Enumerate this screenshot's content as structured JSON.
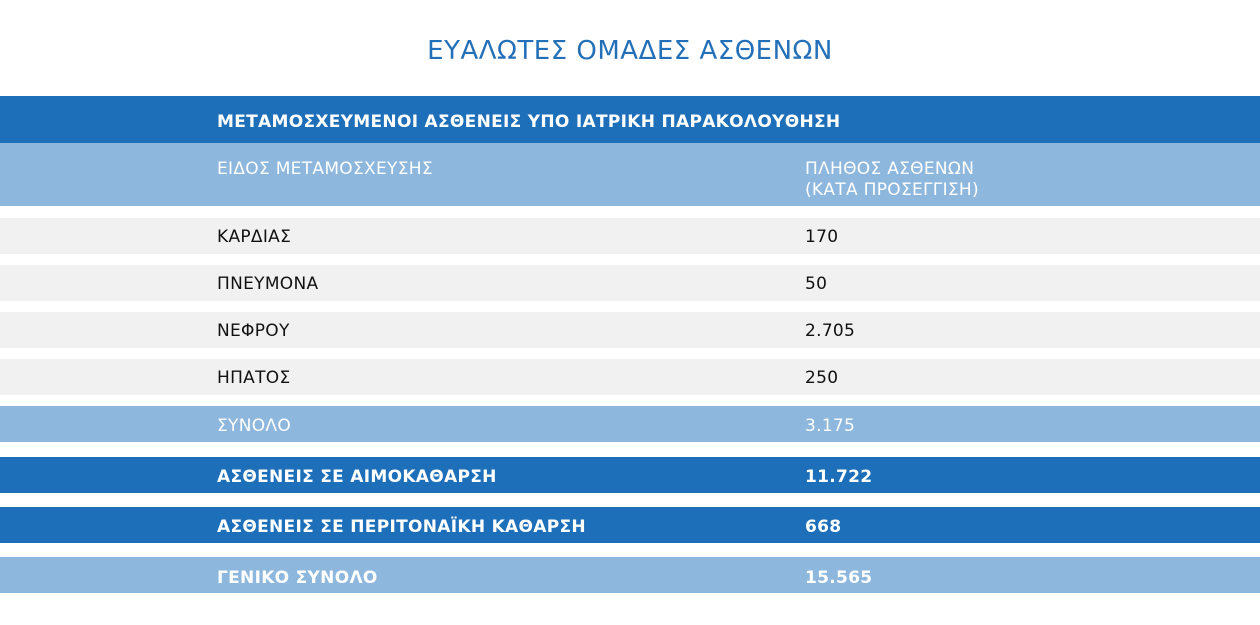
{
  "title": "ΕΥΑΛΩΤΕΣ ΟΜΑΔΕΣ ΑΣΘΕΝΩΝ",
  "section_header": "ΜΕΤΑΜΟΣΧΕΥΜΕΝΟΙ ΑΣΘΕΝΕΙΣ ΥΠΟ ΙΑΤΡΙΚΗ ΠΑΡΑΚΟΛΟΥΘΗΣΗ",
  "columns": {
    "type": "ΕΙΔΟΣ ΜΕΤΑΜΟΣΧΕΥΣΗΣ",
    "count": "ΠΛΗΘΟΣ ΑΣΘΕΝΩΝ\n(ΚΑΤΑ ΠΡΟΣΕΓΓΙΣΗ)"
  },
  "rows": [
    {
      "label": "ΚΑΡΔΙΑΣ",
      "value": "170"
    },
    {
      "label": "ΠΝΕΥΜΟΝΑ",
      "value": "50"
    },
    {
      "label": "ΝΕΦΡΟΥ",
      "value": "2.705"
    },
    {
      "label": "ΗΠΑΤΟΣ",
      "value": "250"
    }
  ],
  "subtotal": {
    "label": "ΣΥΝΟΛΟ",
    "value": "3.175"
  },
  "hemodialysis": {
    "label": "ΑΣΘΕΝΕΙΣ ΣΕ ΑΙΜΟΚΑΘΑΡΣΗ",
    "value": "11.722"
  },
  "peritoneal": {
    "label": "ΑΣΘΕΝΕΙΣ ΣΕ ΠΕΡΙΤΟΝΑΪΚΗ ΚΑΘΑΡΣΗ",
    "value": "668"
  },
  "grand_total": {
    "label": "ΓΕΝΙΚΟ ΣΥΝΟΛΟ",
    "value": "15.565"
  },
  "colors": {
    "title": "#2370b8",
    "dark_band": "#1e6fb9",
    "light_band": "#8db7dc",
    "row_background": "#f1f1f1"
  }
}
